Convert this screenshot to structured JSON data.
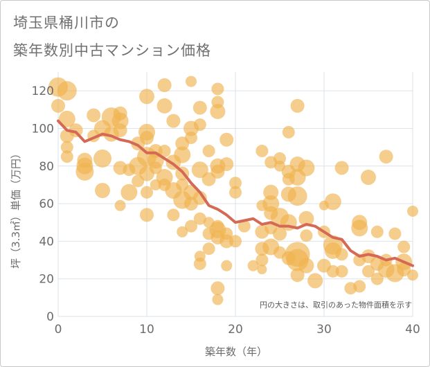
{
  "chart_data": {
    "type": "scatter",
    "title_lines": [
      "埼玉県桶川市の",
      "築年数別中古マンション価格"
    ],
    "xlabel": "築年数（年）",
    "ylabel": "坪（3.3㎡）単価（万円）",
    "note": "円の大きさは、取引のあった物件面積を示す",
    "xlim": [
      0,
      40
    ],
    "ylim": [
      0,
      130
    ],
    "x_ticks": [
      0,
      10,
      20,
      30,
      40
    ],
    "y_ticks": [
      0,
      20,
      40,
      60,
      80,
      100,
      120
    ],
    "grid": true,
    "colors": {
      "bubble": "#f0b24f",
      "trend": "#d46a55",
      "grid": "#dde3ea"
    },
    "trend_line": {
      "x": [
        0,
        1,
        2,
        3,
        4,
        5,
        6,
        7,
        8,
        9,
        10,
        11,
        12,
        13,
        14,
        15,
        16,
        17,
        18,
        19,
        20,
        21,
        22,
        23,
        24,
        25,
        26,
        27,
        28,
        29,
        30,
        31,
        32,
        33,
        34,
        35,
        36,
        37,
        38,
        39,
        40
      ],
      "y": [
        104,
        99,
        98,
        93,
        95,
        97,
        96,
        94,
        93,
        91,
        87,
        87,
        84,
        81,
        77,
        71,
        66,
        59,
        57,
        54,
        50,
        51,
        52,
        49,
        50,
        48,
        48,
        47,
        49,
        48,
        45,
        42,
        41,
        35,
        32,
        33,
        32,
        30,
        31,
        29,
        27
      ]
    },
    "bubbles": [
      {
        "x": 0,
        "y": 122,
        "s": 14
      },
      {
        "x": 0,
        "y": 112,
        "s": 10
      },
      {
        "x": 1,
        "y": 120,
        "s": 14
      },
      {
        "x": 1,
        "y": 105,
        "s": 12
      },
      {
        "x": 1,
        "y": 96,
        "s": 10
      },
      {
        "x": 1,
        "y": 90,
        "s": 9
      },
      {
        "x": 1,
        "y": 85,
        "s": 9
      },
      {
        "x": 2,
        "y": 99,
        "s": 10
      },
      {
        "x": 3,
        "y": 83,
        "s": 11
      },
      {
        "x": 3,
        "y": 80,
        "s": 12
      },
      {
        "x": 3,
        "y": 77,
        "s": 13
      },
      {
        "x": 4,
        "y": 107,
        "s": 10
      },
      {
        "x": 4,
        "y": 96,
        "s": 9
      },
      {
        "x": 5,
        "y": 100,
        "s": 12
      },
      {
        "x": 5,
        "y": 84,
        "s": 13
      },
      {
        "x": 5,
        "y": 67,
        "s": 11
      },
      {
        "x": 6,
        "y": 106,
        "s": 14
      },
      {
        "x": 6,
        "y": 97,
        "s": 11
      },
      {
        "x": 7,
        "y": 108,
        "s": 10
      },
      {
        "x": 7,
        "y": 104,
        "s": 12
      },
      {
        "x": 7,
        "y": 99,
        "s": 10
      },
      {
        "x": 7,
        "y": 79,
        "s": 10
      },
      {
        "x": 7,
        "y": 59,
        "s": 8
      },
      {
        "x": 8,
        "y": 66,
        "s": 12
      },
      {
        "x": 8,
        "y": 78,
        "s": 9
      },
      {
        "x": 9,
        "y": 92,
        "s": 10
      },
      {
        "x": 9,
        "y": 80,
        "s": 13
      },
      {
        "x": 9,
        "y": 72,
        "s": 9
      },
      {
        "x": 10,
        "y": 117,
        "s": 11
      },
      {
        "x": 10,
        "y": 98,
        "s": 12
      },
      {
        "x": 10,
        "y": 95,
        "s": 10
      },
      {
        "x": 10,
        "y": 85,
        "s": 14
      },
      {
        "x": 10,
        "y": 76,
        "s": 11
      },
      {
        "x": 10,
        "y": 66,
        "s": 9
      },
      {
        "x": 10,
        "y": 54,
        "s": 10
      },
      {
        "x": 11,
        "y": 88,
        "s": 10
      },
      {
        "x": 11,
        "y": 83,
        "s": 12
      },
      {
        "x": 11,
        "y": 79,
        "s": 9
      },
      {
        "x": 11,
        "y": 70,
        "s": 8
      },
      {
        "x": 12,
        "y": 123,
        "s": 10
      },
      {
        "x": 12,
        "y": 112,
        "s": 11
      },
      {
        "x": 12,
        "y": 88,
        "s": 9
      },
      {
        "x": 12,
        "y": 74,
        "s": 12
      },
      {
        "x": 12,
        "y": 70,
        "s": 9
      },
      {
        "x": 13,
        "y": 104,
        "s": 10
      },
      {
        "x": 13,
        "y": 82,
        "s": 11
      },
      {
        "x": 13,
        "y": 67,
        "s": 12
      },
      {
        "x": 13,
        "y": 54,
        "s": 9
      },
      {
        "x": 14,
        "y": 92,
        "s": 10
      },
      {
        "x": 14,
        "y": 86,
        "s": 12
      },
      {
        "x": 14,
        "y": 76,
        "s": 10
      },
      {
        "x": 14,
        "y": 70,
        "s": 9
      },
      {
        "x": 14,
        "y": 62,
        "s": 13
      },
      {
        "x": 14,
        "y": 45,
        "s": 8
      },
      {
        "x": 15,
        "y": 125,
        "s": 8
      },
      {
        "x": 15,
        "y": 100,
        "s": 11
      },
      {
        "x": 15,
        "y": 95,
        "s": 9
      },
      {
        "x": 15,
        "y": 66,
        "s": 11
      },
      {
        "x": 15,
        "y": 60,
        "s": 10
      },
      {
        "x": 15,
        "y": 48,
        "s": 9
      },
      {
        "x": 16,
        "y": 111,
        "s": 10
      },
      {
        "x": 16,
        "y": 102,
        "s": 9
      },
      {
        "x": 16,
        "y": 78,
        "s": 12
      },
      {
        "x": 16,
        "y": 63,
        "s": 10
      },
      {
        "x": 16,
        "y": 52,
        "s": 9
      },
      {
        "x": 16,
        "y": 32,
        "s": 8
      },
      {
        "x": 16,
        "y": 28,
        "s": 9
      },
      {
        "x": 17,
        "y": 88,
        "s": 9
      },
      {
        "x": 17,
        "y": 73,
        "s": 10
      },
      {
        "x": 17,
        "y": 50,
        "s": 8
      },
      {
        "x": 17,
        "y": 44,
        "s": 9
      },
      {
        "x": 17,
        "y": 36,
        "s": 9
      },
      {
        "x": 18,
        "y": 121,
        "s": 9
      },
      {
        "x": 18,
        "y": 114,
        "s": 9
      },
      {
        "x": 18,
        "y": 109,
        "s": 11
      },
      {
        "x": 18,
        "y": 80,
        "s": 11
      },
      {
        "x": 18,
        "y": 77,
        "s": 10
      },
      {
        "x": 18,
        "y": 48,
        "s": 9
      },
      {
        "x": 18,
        "y": 46,
        "s": 12
      },
      {
        "x": 18,
        "y": 42,
        "s": 10
      },
      {
        "x": 18,
        "y": 15,
        "s": 10
      },
      {
        "x": 18,
        "y": 9,
        "s": 8
      },
      {
        "x": 19,
        "y": 94,
        "s": 10
      },
      {
        "x": 19,
        "y": 81,
        "s": 10
      },
      {
        "x": 19,
        "y": 44,
        "s": 9
      },
      {
        "x": 19,
        "y": 40,
        "s": 10
      },
      {
        "x": 19,
        "y": 27,
        "s": 8
      },
      {
        "x": 20,
        "y": 71,
        "s": 9
      },
      {
        "x": 20,
        "y": 66,
        "s": 9
      },
      {
        "x": 20,
        "y": 40,
        "s": 9
      },
      {
        "x": 21,
        "y": 48,
        "s": 9
      },
      {
        "x": 22,
        "y": 27,
        "s": 8
      },
      {
        "x": 23,
        "y": 88,
        "s": 9
      },
      {
        "x": 23,
        "y": 59,
        "s": 8
      },
      {
        "x": 23,
        "y": 45,
        "s": 10
      },
      {
        "x": 23,
        "y": 36,
        "s": 10
      },
      {
        "x": 23,
        "y": 30,
        "s": 9
      },
      {
        "x": 23,
        "y": 25,
        "s": 7
      },
      {
        "x": 24,
        "y": 82,
        "s": 9
      },
      {
        "x": 24,
        "y": 66,
        "s": 11
      },
      {
        "x": 24,
        "y": 60,
        "s": 12
      },
      {
        "x": 24,
        "y": 55,
        "s": 10
      },
      {
        "x": 24,
        "y": 47,
        "s": 9
      },
      {
        "x": 24,
        "y": 37,
        "s": 12
      },
      {
        "x": 25,
        "y": 84,
        "s": 9
      },
      {
        "x": 25,
        "y": 80,
        "s": 8
      },
      {
        "x": 25,
        "y": 53,
        "s": 13
      },
      {
        "x": 25,
        "y": 44,
        "s": 10
      },
      {
        "x": 25,
        "y": 34,
        "s": 9
      },
      {
        "x": 26,
        "y": 98,
        "s": 9
      },
      {
        "x": 26,
        "y": 77,
        "s": 10
      },
      {
        "x": 26,
        "y": 73,
        "s": 9
      },
      {
        "x": 26,
        "y": 65,
        "s": 11
      },
      {
        "x": 26,
        "y": 50,
        "s": 12
      },
      {
        "x": 26,
        "y": 31,
        "s": 10
      },
      {
        "x": 27,
        "y": 112,
        "s": 10
      },
      {
        "x": 27,
        "y": 81,
        "s": 11
      },
      {
        "x": 27,
        "y": 74,
        "s": 12
      },
      {
        "x": 27,
        "y": 64,
        "s": 14
      },
      {
        "x": 27,
        "y": 33,
        "s": 18
      },
      {
        "x": 27,
        "y": 30,
        "s": 16
      },
      {
        "x": 27,
        "y": 22,
        "s": 10
      },
      {
        "x": 28,
        "y": 79,
        "s": 12
      },
      {
        "x": 28,
        "y": 52,
        "s": 11
      },
      {
        "x": 28,
        "y": 43,
        "s": 9
      },
      {
        "x": 28,
        "y": 27,
        "s": 11
      },
      {
        "x": 29,
        "y": 19,
        "s": 11
      },
      {
        "x": 30,
        "y": 59,
        "s": 7
      },
      {
        "x": 30,
        "y": 45,
        "s": 9
      },
      {
        "x": 30,
        "y": 27,
        "s": 10
      },
      {
        "x": 31,
        "y": 61,
        "s": 12
      },
      {
        "x": 31,
        "y": 38,
        "s": 14
      },
      {
        "x": 31,
        "y": 35,
        "s": 12
      },
      {
        "x": 31,
        "y": 24,
        "s": 9
      },
      {
        "x": 32,
        "y": 79,
        "s": 10
      },
      {
        "x": 32,
        "y": 33,
        "s": 9
      },
      {
        "x": 32,
        "y": 24,
        "s": 9
      },
      {
        "x": 33,
        "y": 15,
        "s": 9
      },
      {
        "x": 34,
        "y": 50,
        "s": 11
      },
      {
        "x": 34,
        "y": 47,
        "s": 12
      },
      {
        "x": 34,
        "y": 30,
        "s": 9
      },
      {
        "x": 34,
        "y": 16,
        "s": 9
      },
      {
        "x": 35,
        "y": 74,
        "s": 11
      },
      {
        "x": 35,
        "y": 32,
        "s": 10
      },
      {
        "x": 35,
        "y": 24,
        "s": 9
      },
      {
        "x": 36,
        "y": 45,
        "s": 9
      },
      {
        "x": 36,
        "y": 28,
        "s": 10
      },
      {
        "x": 36,
        "y": 20,
        "s": 9
      },
      {
        "x": 37,
        "y": 85,
        "s": 10
      },
      {
        "x": 37,
        "y": 30,
        "s": 9
      },
      {
        "x": 37,
        "y": 25,
        "s": 12
      },
      {
        "x": 38,
        "y": 44,
        "s": 9
      },
      {
        "x": 38,
        "y": 23,
        "s": 13
      },
      {
        "x": 39,
        "y": 37,
        "s": 9
      },
      {
        "x": 39,
        "y": 29,
        "s": 12
      },
      {
        "x": 39,
        "y": 25,
        "s": 10
      },
      {
        "x": 40,
        "y": 56,
        "s": 8
      },
      {
        "x": 40,
        "y": 22,
        "s": 8
      }
    ]
  }
}
